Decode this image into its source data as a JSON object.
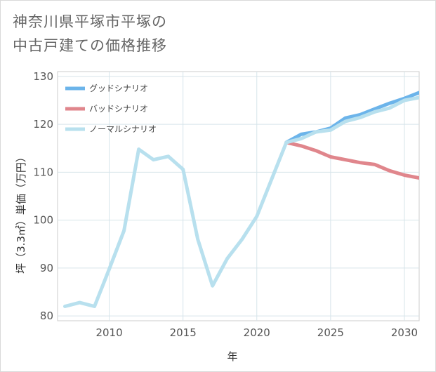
{
  "title_line1": "神奈川県平塚市平塚の",
  "title_line2": "中古戸建ての価格推移",
  "chart_data": {
    "type": "line",
    "title": "神奈川県平塚市平塚の中古戸建ての価格推移",
    "xlabel": "年",
    "ylabel": "坪（3.3㎡）単価（万円）",
    "xlim": [
      2006.5,
      2031
    ],
    "ylim": [
      79,
      131
    ],
    "xticks": [
      2010,
      2015,
      2020,
      2025,
      2030
    ],
    "yticks": [
      80,
      90,
      100,
      110,
      120,
      130
    ],
    "grid": true,
    "legend_position": "top-left",
    "series": [
      {
        "name": "グッドシナリオ",
        "color": "#6cb4ea",
        "x": [
          2022,
          2023,
          2024,
          2025,
          2026,
          2027,
          2028,
          2029,
          2030,
          2031
        ],
        "values": [
          116.2,
          117.9,
          118.4,
          119.2,
          121.3,
          122.0,
          123.2,
          124.4,
          125.4,
          126.6
        ]
      },
      {
        "name": "バッドシナリオ",
        "color": "#e0868c",
        "x": [
          2022,
          2023,
          2024,
          2025,
          2026,
          2027,
          2028,
          2029,
          2030,
          2031
        ],
        "values": [
          116.2,
          115.5,
          114.5,
          113.2,
          112.6,
          112.0,
          111.6,
          110.3,
          109.4,
          108.8
        ]
      },
      {
        "name": "ノーマルシナリオ",
        "color": "#b8e0ee",
        "x": [
          2007,
          2008,
          2009,
          2010,
          2011,
          2012,
          2013,
          2014,
          2015,
          2016,
          2017,
          2018,
          2019,
          2020,
          2021,
          2022,
          2023,
          2024,
          2025,
          2026,
          2027,
          2028,
          2029,
          2030,
          2031
        ],
        "values": [
          82.0,
          82.8,
          82.0,
          89.8,
          97.8,
          114.8,
          112.6,
          113.3,
          110.6,
          96.0,
          86.3,
          92.0,
          96.0,
          100.8,
          108.5,
          116.2,
          117.0,
          118.4,
          118.8,
          120.6,
          121.4,
          122.6,
          123.4,
          125.0,
          125.6
        ]
      }
    ]
  }
}
